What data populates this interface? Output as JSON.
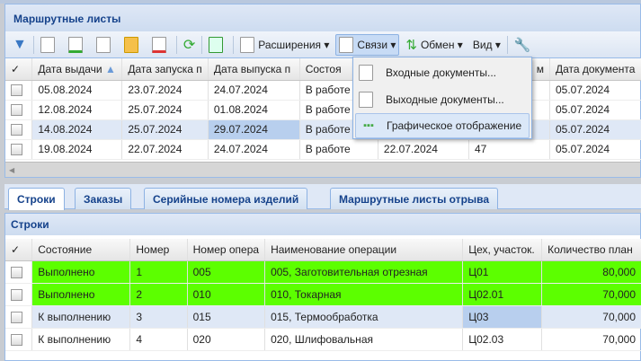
{
  "panel_title": "Маршрутные листы",
  "toolbar": {
    "extensions": "Расширения",
    "links": "Связи",
    "exchange": "Обмен",
    "view": "Вид"
  },
  "links_menu": [
    "Входные документы...",
    "Выходные документы...",
    "Графическое отображение"
  ],
  "top_grid": {
    "columns": [
      "Дата выдачи",
      "Дата запуска п",
      "Дата выпуска п",
      "Состоя",
      "",
      "м",
      "Дата документа"
    ],
    "rows": [
      [
        "05.08.2024",
        "23.07.2024",
        "24.07.2024",
        "В работе",
        "",
        "",
        "05.07.2024"
      ],
      [
        "12.08.2024",
        "25.07.2024",
        "01.08.2024",
        "В работе",
        "",
        "",
        "05.07.2024"
      ],
      [
        "14.08.2024",
        "25.07.2024",
        "29.07.2024",
        "В работе",
        "",
        "",
        "05.07.2024"
      ],
      [
        "19.08.2024",
        "22.07.2024",
        "24.07.2024",
        "В работе",
        "22.07.2024",
        "47",
        "05.07.2024"
      ]
    ]
  },
  "tabs": [
    "Строки",
    "Заказы",
    "Серийные номера изделий",
    "Маршрутные листы отрыва"
  ],
  "lines_title": "Строки",
  "lines_grid": {
    "columns": [
      "Состояние",
      "Номер",
      "Номер опера",
      "Наименование операции",
      "Цех, участок.",
      "Количество план"
    ],
    "rows": [
      [
        "Выполнено",
        "1",
        "005",
        "005, Заготовительная отрезная",
        "Ц01",
        "80,000"
      ],
      [
        "Выполнено",
        "2",
        "010",
        "010, Токарная",
        "Ц02.01",
        "70,000"
      ],
      [
        "К выполнению",
        "3",
        "015",
        "015, Термообработка",
        "Ц03",
        "70,000"
      ],
      [
        "К выполнению",
        "4",
        "020",
        "020, Шлифовальная",
        "Ц02.03",
        "70,000"
      ]
    ]
  },
  "colors": {
    "done": "#5cff00",
    "title": "#15428b",
    "selected": "#dfe8f6"
  }
}
